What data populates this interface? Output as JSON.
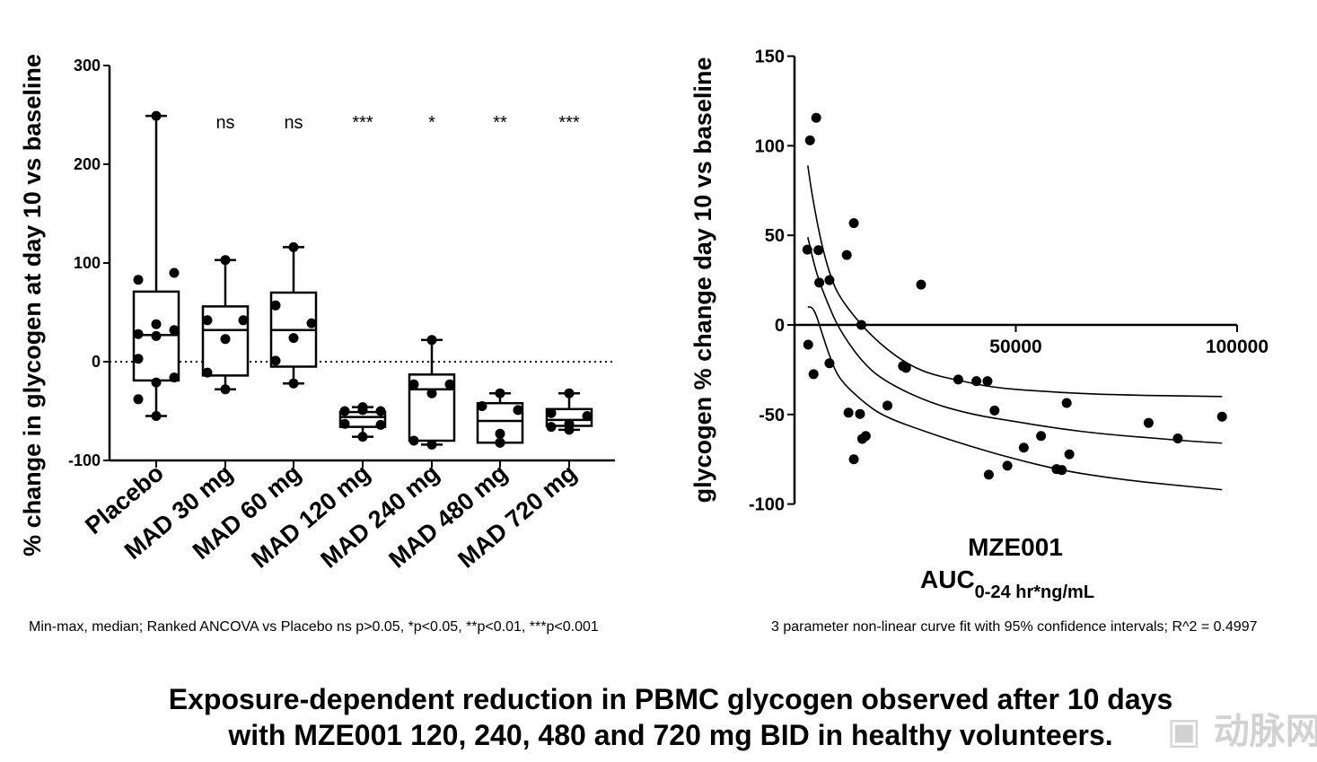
{
  "chart_data": [
    {
      "type": "box",
      "ylabel": "% change in glycogen at day 10 vs baseline",
      "ylim": [
        -100,
        300
      ],
      "yticks": [
        -100,
        0,
        100,
        200,
        300
      ],
      "reference_line": 0,
      "categories": [
        "Placebo",
        "MAD 30 mg",
        "MAD 60 mg",
        "MAD 120 mg",
        "MAD 240 mg",
        "MAD 480 mg",
        "MAD 720 mg"
      ],
      "significance": [
        "",
        "ns",
        "ns",
        "***",
        "*",
        "**",
        "***"
      ],
      "boxes": [
        {
          "min": -55,
          "q1": -19,
          "median": 27,
          "q3": 71,
          "max": 249,
          "points": [
            249,
            83,
            90,
            38,
            28,
            32,
            26,
            3,
            -16,
            -21,
            -38,
            -55
          ]
        },
        {
          "min": -28,
          "q1": -14,
          "median": 32,
          "q3": 56,
          "max": 103,
          "points": [
            103,
            42,
            42,
            23,
            -11,
            -28
          ]
        },
        {
          "min": -22,
          "q1": -5,
          "median": 32,
          "q3": 70,
          "max": 116,
          "points": [
            116,
            57,
            39,
            24,
            1,
            -22
          ]
        },
        {
          "min": -76,
          "q1": -66,
          "median": -56,
          "q3": -51,
          "max": -46,
          "points": [
            -46,
            -50,
            -50,
            -49,
            -63,
            -64,
            -76
          ]
        },
        {
          "min": -84,
          "q1": -80,
          "median": -28,
          "q3": -13,
          "max": 22,
          "points": [
            22,
            -23,
            -23,
            -32,
            -80,
            -84
          ]
        },
        {
          "min": -82,
          "q1": -82,
          "median": -60,
          "q3": -42,
          "max": -32,
          "points": [
            -32,
            -45,
            -49,
            -73,
            -82,
            -82
          ]
        },
        {
          "min": -69,
          "q1": -65,
          "median": -59,
          "q3": -48,
          "max": -32,
          "points": [
            -32,
            -52,
            -55,
            -63,
            -66,
            -69
          ]
        }
      ],
      "footnote": "Min-max, median; Ranked ANCOVA vs Placebo ns p>0.05, *p<0.05, **p<0.01, ***p<0.001"
    },
    {
      "type": "scatter",
      "ylabel": "glycogen % change day 10 vs baseline",
      "xlabel": "MZE001",
      "xlabel2_main": "AUC",
      "xlabel2_sub": "0-24 hr*ng/mL",
      "xlim": [
        0,
        100000
      ],
      "ylim": [
        -100,
        150
      ],
      "xticks": [
        50000,
        100000
      ],
      "xtick_labels": [
        "50000",
        "100000"
      ],
      "yticks": [
        -100,
        -50,
        0,
        50,
        100,
        150
      ],
      "points": [
        [
          4900,
          115.6
        ],
        [
          3500,
          103
        ],
        [
          2900,
          42
        ],
        [
          5400,
          41.7
        ],
        [
          5600,
          23.6
        ],
        [
          7900,
          25
        ],
        [
          13400,
          56.8
        ],
        [
          11800,
          39
        ],
        [
          28600,
          22.5
        ],
        [
          15100,
          0
        ],
        [
          3100,
          -11
        ],
        [
          4300,
          -27.5
        ],
        [
          7900,
          -21.4
        ],
        [
          12200,
          -49
        ],
        [
          14800,
          -49.7
        ],
        [
          15300,
          -63.6
        ],
        [
          16100,
          -62
        ],
        [
          13400,
          -75
        ],
        [
          21000,
          -45
        ],
        [
          24500,
          -23
        ],
        [
          25200,
          -24
        ],
        [
          37000,
          -30.5
        ],
        [
          41100,
          -31.4
        ],
        [
          43600,
          -31.4
        ],
        [
          45200,
          -47.8
        ],
        [
          43900,
          -83.6
        ],
        [
          48100,
          -78.6
        ],
        [
          51800,
          -68.5
        ],
        [
          55700,
          -62
        ],
        [
          59200,
          -80.5
        ],
        [
          60400,
          -81
        ],
        [
          61500,
          -43.6
        ],
        [
          62100,
          -72.2
        ],
        [
          80000,
          -54.7
        ],
        [
          86600,
          -63.4
        ],
        [
          96600,
          -51.2
        ]
      ],
      "fit": [
        [
          3000,
          49
        ],
        [
          5000,
          28
        ],
        [
          7500,
          12
        ],
        [
          10000,
          -2
        ],
        [
          15000,
          -20
        ],
        [
          20000,
          -31
        ],
        [
          30000,
          -43
        ],
        [
          40000,
          -50
        ],
        [
          50000,
          -54
        ],
        [
          60000,
          -58
        ],
        [
          70000,
          -61
        ],
        [
          80000,
          -63
        ],
        [
          90000,
          -65
        ],
        [
          96600,
          -66
        ]
      ],
      "ci_upper": [
        [
          3000,
          89
        ],
        [
          4000,
          72
        ],
        [
          6000,
          46
        ],
        [
          8000,
          28
        ],
        [
          10000,
          16
        ],
        [
          15000,
          0
        ],
        [
          20000,
          -12
        ],
        [
          25000,
          -21
        ],
        [
          30000,
          -27
        ],
        [
          37000,
          -31
        ],
        [
          45000,
          -35
        ],
        [
          55000,
          -37
        ],
        [
          70000,
          -39
        ],
        [
          96600,
          -40
        ]
      ],
      "ci_lower": [
        [
          3000,
          10
        ],
        [
          4000,
          10
        ],
        [
          5000,
          5
        ],
        [
          6000,
          -3
        ],
        [
          8000,
          -18
        ],
        [
          10000,
          -30
        ],
        [
          15000,
          -42
        ],
        [
          20000,
          -51
        ],
        [
          30000,
          -60
        ],
        [
          40000,
          -68
        ],
        [
          50000,
          -75
        ],
        [
          60000,
          -81
        ],
        [
          70000,
          -85
        ],
        [
          80000,
          -88
        ],
        [
          96600,
          -92
        ]
      ],
      "footnote": "3 parameter non-linear curve fit with 95% confidence intervals; R^2 = 0.4997"
    }
  ],
  "title_line1": "Exposure-dependent reduction in PBMC glycogen observed after 10 days",
  "title_line2": "with MZE001 120, 240, 480 and 720 mg BID in healthy volunteers.",
  "watermark": "动脉网"
}
